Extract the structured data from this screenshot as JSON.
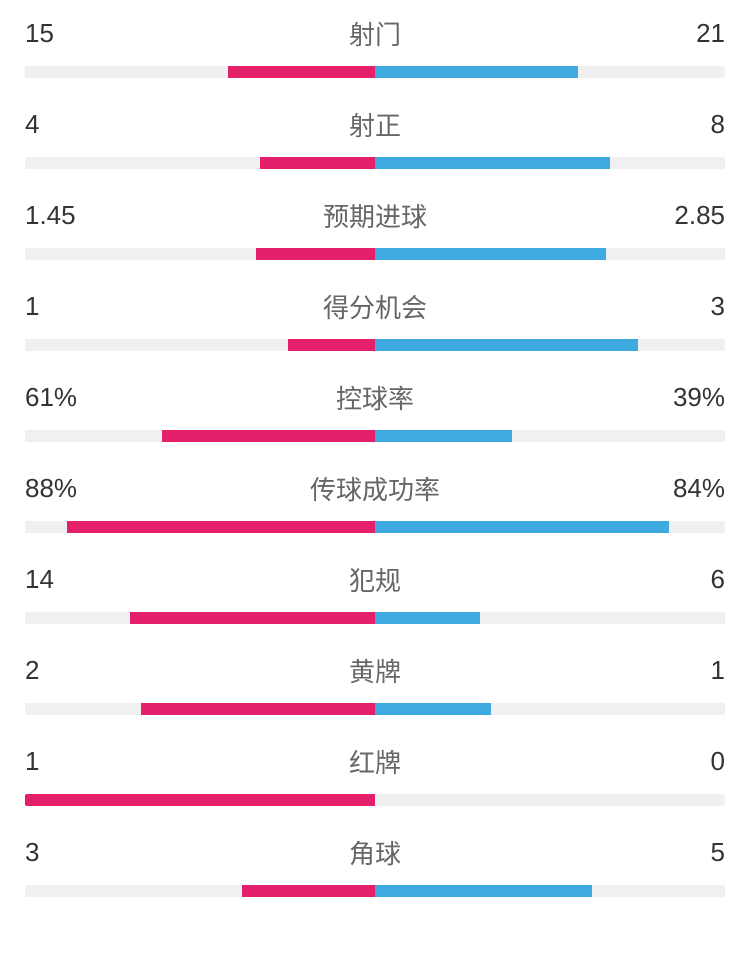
{
  "colors": {
    "leftBar": "#e5206a",
    "rightBar": "#3faae0",
    "trackBg": "#f0f0f0",
    "textValue": "#333333",
    "textTitle": "#666666",
    "background": "#ffffff"
  },
  "typography": {
    "valueFontSize": 26,
    "titleFontSize": 26
  },
  "layout": {
    "barHeight": 12,
    "rowGap": 28
  },
  "stats": [
    {
      "title": "射门",
      "leftValue": "15",
      "rightValue": "21",
      "leftFillPct": 42,
      "rightFillPct": 58
    },
    {
      "title": "射正",
      "leftValue": "4",
      "rightValue": "8",
      "leftFillPct": 33,
      "rightFillPct": 67
    },
    {
      "title": "预期进球",
      "leftValue": "1.45",
      "rightValue": "2.85",
      "leftFillPct": 34,
      "rightFillPct": 66
    },
    {
      "title": "得分机会",
      "leftValue": "1",
      "rightValue": "3",
      "leftFillPct": 25,
      "rightFillPct": 75
    },
    {
      "title": "控球率",
      "leftValue": "61%",
      "rightValue": "39%",
      "leftFillPct": 61,
      "rightFillPct": 39
    },
    {
      "title": "传球成功率",
      "leftValue": "88%",
      "rightValue": "84%",
      "leftFillPct": 88,
      "rightFillPct": 84
    },
    {
      "title": "犯规",
      "leftValue": "14",
      "rightValue": "6",
      "leftFillPct": 70,
      "rightFillPct": 30
    },
    {
      "title": "黄牌",
      "leftValue": "2",
      "rightValue": "1",
      "leftFillPct": 67,
      "rightFillPct": 33
    },
    {
      "title": "红牌",
      "leftValue": "1",
      "rightValue": "0",
      "leftFillPct": 100,
      "rightFillPct": 0
    },
    {
      "title": "角球",
      "leftValue": "3",
      "rightValue": "5",
      "leftFillPct": 38,
      "rightFillPct": 62
    }
  ]
}
